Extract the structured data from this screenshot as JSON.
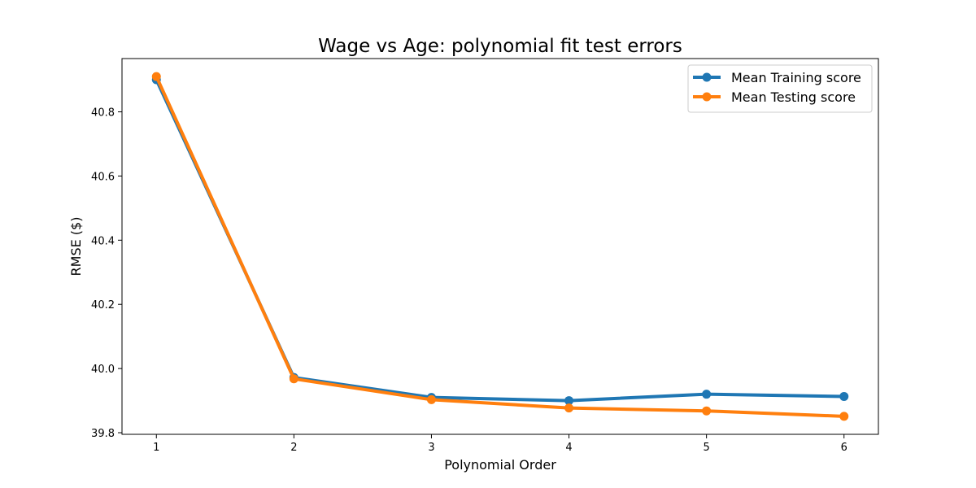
{
  "chart_data": {
    "type": "line",
    "title": "Wage vs Age: polynomial fit test errors",
    "xlabel": "Polynomial Order",
    "ylabel": "RMSE ($)",
    "x": [
      1,
      2,
      3,
      4,
      5,
      6
    ],
    "xticks": [
      1,
      2,
      3,
      4,
      5,
      6
    ],
    "yticks": [
      39.8,
      40.0,
      40.2,
      40.4,
      40.6,
      40.8
    ],
    "xlim": [
      0.75,
      6.25
    ],
    "ylim": [
      39.795,
      40.966
    ],
    "grid": false,
    "legend_position": "top-right",
    "series": [
      {
        "name": "Mean Training score",
        "color": "#1f77b4",
        "values": [
          40.9,
          39.972,
          39.91,
          39.9,
          39.92,
          39.913
        ]
      },
      {
        "name": "Mean Testing score",
        "color": "#ff7f0e",
        "values": [
          40.91,
          39.968,
          39.903,
          39.877,
          39.868,
          39.851
        ]
      }
    ]
  }
}
